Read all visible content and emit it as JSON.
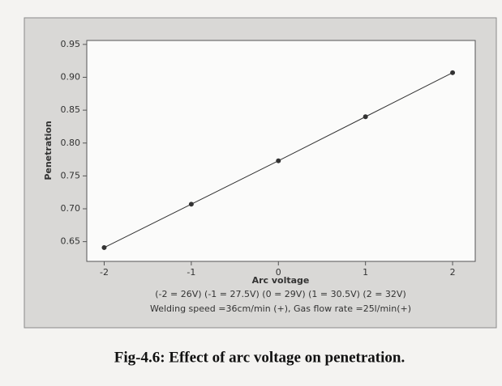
{
  "chart_data": {
    "type": "line",
    "caption": "Fig-4.6: Effect of arc voltage on penetration.",
    "xlabel": "Arc voltage",
    "ylabel": "Penetration",
    "notes": [
      "(-2 = 26V) (-1 = 27.5V) (0 = 29V) (1 = 30.5V) (2 = 32V)",
      "Welding speed =36cm/min (+), Gas flow rate =25l/min(+)"
    ],
    "x": [
      -2,
      -1,
      0,
      1,
      2
    ],
    "series": [
      {
        "color": "#333333",
        "values": [
          0.641,
          0.707,
          0.773,
          0.84,
          0.907
        ]
      }
    ],
    "xlim": [
      -2.2,
      2.26
    ],
    "xticks": [
      -2,
      -1,
      0,
      1,
      2
    ],
    "ylim": [
      0.62,
      0.956
    ],
    "yticks": [
      0.65,
      {
        "value": 0.7,
        "label": "0.70"
      },
      0.75,
      {
        "value": 0.8,
        "label": "0.80"
      },
      0.85,
      {
        "value": 0.9,
        "label": "0.90"
      },
      0.95
    ]
  }
}
